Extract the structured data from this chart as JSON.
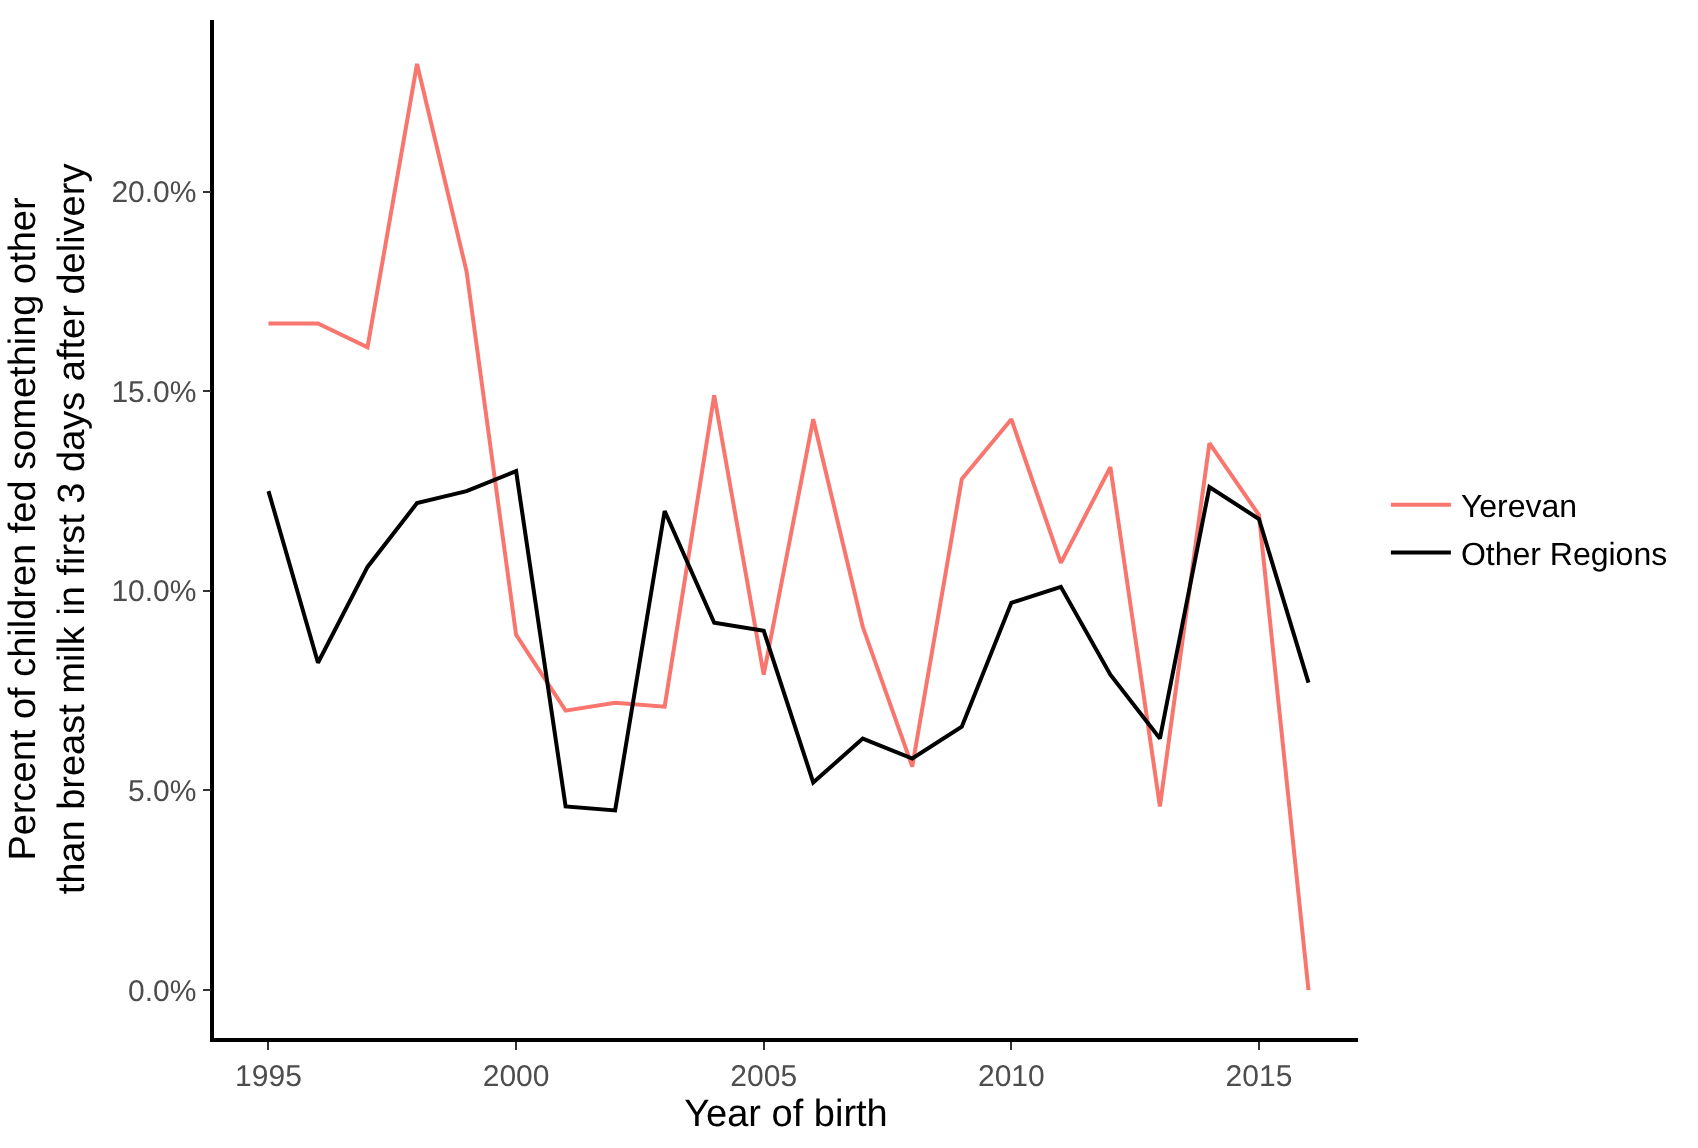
{
  "chart_data": {
    "type": "line",
    "xlabel": "Year of birth",
    "ylabel": "Percent of children fed something other\nthan breast milk in first 3 days after delivery",
    "x": [
      1995,
      1996,
      1997,
      1998,
      1999,
      2000,
      2001,
      2002,
      2003,
      2004,
      2005,
      2006,
      2007,
      2008,
      2009,
      2010,
      2011,
      2012,
      2013,
      2014,
      2015,
      2016
    ],
    "series": [
      {
        "name": "Yerevan",
        "color": "#f8766d",
        "values": [
          16.7,
          16.7,
          16.1,
          23.2,
          18.0,
          8.9,
          7.0,
          7.2,
          7.1,
          14.9,
          7.9,
          14.3,
          9.1,
          5.6,
          12.8,
          14.3,
          10.7,
          13.1,
          4.6,
          13.7,
          11.9,
          0.0
        ]
      },
      {
        "name": "Other Regions",
        "color": "#000000",
        "values": [
          12.5,
          8.2,
          10.6,
          12.2,
          12.5,
          13.0,
          4.6,
          4.5,
          12.0,
          9.2,
          9.0,
          5.2,
          6.3,
          5.8,
          6.6,
          9.7,
          10.1,
          7.9,
          6.3,
          12.6,
          11.8,
          7.7
        ]
      }
    ],
    "xlim": [
      1993.9,
      2017.0
    ],
    "xticks": [
      1995,
      2000,
      2005,
      2010,
      2015
    ],
    "ylim": [
      -1.2,
      24.3
    ],
    "yticks": [
      {
        "value": 0,
        "label": "0.0%"
      },
      {
        "value": 5,
        "label": "5.0%"
      },
      {
        "value": 10,
        "label": "10.0%"
      },
      {
        "value": 15,
        "label": "15.0%"
      },
      {
        "value": 20,
        "label": "20.0%"
      }
    ],
    "legend": "right",
    "marker": "none",
    "line_style": "solid"
  }
}
